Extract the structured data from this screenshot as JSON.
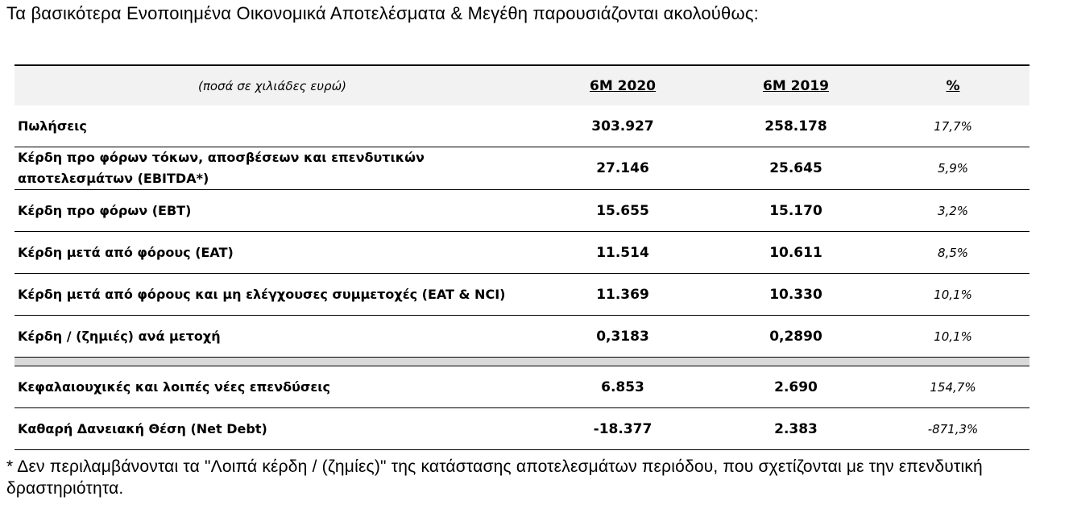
{
  "intro": "Τα βασικότερα Ενοποιημένα Οικονομικά Αποτελέσματα & Μεγέθη παρουσιάζονται ακολούθως:",
  "table": {
    "headers": {
      "unit": "(ποσά σε χιλιάδες ευρώ)",
      "col1": "6M 2020",
      "col2": "6M 2019",
      "col3": "%"
    },
    "rows": [
      {
        "label": "Πωλήσεις",
        "v2020": "303.927",
        "v2019": "258.178",
        "pct": "17,7%"
      },
      {
        "label_line1": "Κέρδη προ φόρων τόκων, αποσβέσεων και επενδυτικών",
        "label_line2": "αποτελεσμάτων (EBITDA*)",
        "v2020": "27.146",
        "v2019": "25.645",
        "pct": "5,9%"
      },
      {
        "label": "Κέρδη προ φόρων (EBT)",
        "v2020": "15.655",
        "v2019": "15.170",
        "pct": "3,2%"
      },
      {
        "label": "Κέρδη μετά από φόρους (EAT)",
        "v2020": "11.514",
        "v2019": "10.611",
        "pct": "8,5%"
      },
      {
        "label": "Κέρδη μετά από φόρους και μη ελέγχουσες συμμετοχές (EAT & NCI)",
        "v2020": "11.369",
        "v2019": "10.330",
        "pct": "10,1%"
      },
      {
        "label": "Κέρδη / (ζημιές) ανά μετοχή",
        "v2020": "0,3183",
        "v2019": "0,2890",
        "pct": "10,1%"
      }
    ],
    "rows2": [
      {
        "label": "Κεφαλαιουχικές και λοιπές νέες επενδύσεις",
        "v2020": "6.853",
        "v2019": "2.690",
        "pct": "154,7%"
      },
      {
        "label": "Καθαρή Δανειακή Θέση (Net Debt)",
        "v2020": "-18.377",
        "v2019": "2.383",
        "pct": "-871,3%"
      }
    ]
  },
  "footnote": "* Δεν περιλαμβάνονται τα \"Λοιπά κέρδη / (ζημίες)\" της κατάστασης αποτελεσμάτων περιόδου, που σχετίζονται με την επενδυτική δραστηριότητα."
}
